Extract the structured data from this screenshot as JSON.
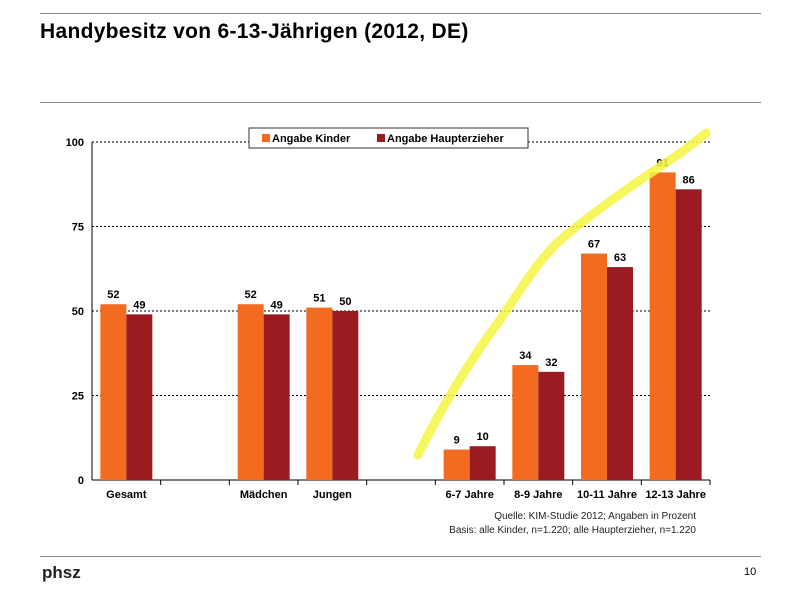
{
  "title": "Handybesitz von 6-13-Jährigen (2012, DE)",
  "logo": "phsz",
  "page_number": "10",
  "source": "Quelle: KIM-Studie 2012; Angaben in Prozent",
  "basis": "Basis: alle Kinder, n=1.220; alle Haupterzieher, n=1.220",
  "chart_data": {
    "type": "bar",
    "categories": [
      "Gesamt",
      "",
      "Mädchen",
      "Jungen",
      "",
      "6-7 Jahre",
      "8-9 Jahre",
      "10-11 Jahre",
      "12-13 Jahre"
    ],
    "series": [
      {
        "name": "Angabe Kinder",
        "color": "#f26b21",
        "values": [
          52,
          null,
          52,
          51,
          null,
          9,
          34,
          67,
          91
        ]
      },
      {
        "name": "Angabe Haupterzieher",
        "color": "#9b1c20",
        "values": [
          49,
          null,
          49,
          50,
          null,
          10,
          32,
          63,
          86
        ]
      }
    ],
    "yticks": [
      0,
      25,
      50,
      75,
      100
    ],
    "ylim": [
      0,
      100
    ],
    "grid": true,
    "legend": "top-center",
    "annotation": "yellow highlighter stroke rising across age groups",
    "highlight_color": "#f5f542"
  }
}
